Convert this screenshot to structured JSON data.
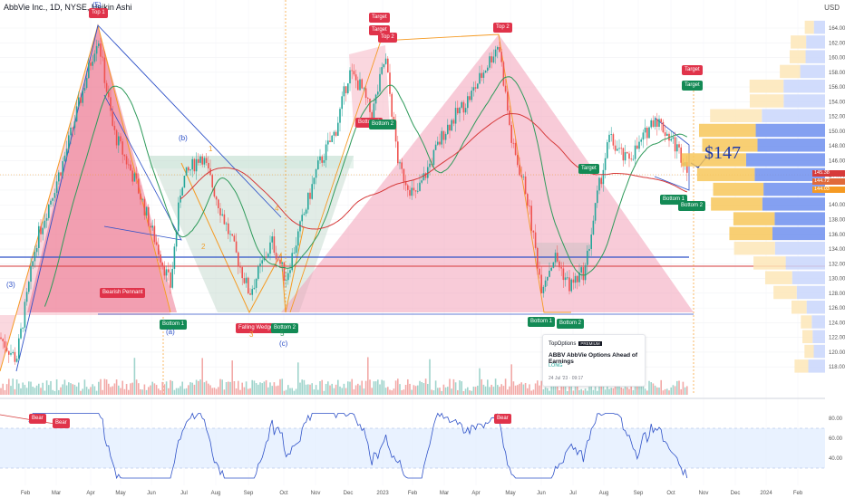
{
  "header": {
    "title": "AbbVie Inc., 1D, NYSE, Heikin Ashi",
    "currency": "USD"
  },
  "colors": {
    "bull": "#26a69a",
    "bear": "#ef5350",
    "pattern": "#f08a8a",
    "line_blue": "#2f52c8",
    "orange": "#f59a23",
    "ma_green": "#2e9a5a",
    "ma_red": "#d63a3a",
    "rsi": "#2f52c8"
  },
  "price_labels": {
    "current": "145.38",
    "p2": "144.72",
    "p3": "144.03"
  },
  "price_axis": [
    164,
    162,
    160,
    158,
    156,
    154,
    152,
    150,
    148,
    146,
    144,
    142,
    140,
    138,
    136,
    134,
    132,
    130,
    128,
    126,
    124,
    122,
    120,
    118
  ],
  "rsi_axis": [
    80,
    60,
    40
  ],
  "time_axis": [
    "Feb",
    "Mar",
    "Apr",
    "May",
    "Jun",
    "Jul",
    "Aug",
    "Sep",
    "Oct",
    "Nov",
    "Dec",
    "2023",
    "Feb",
    "Mar",
    "Apr",
    "May",
    "Jun",
    "Jul",
    "Aug",
    "Sep",
    "Oct",
    "Nov",
    "Dec",
    "2024",
    "Feb"
  ],
  "tags": {
    "top1": "Top 1",
    "top2": "Top 2",
    "target1": "Target",
    "target2": "Target",
    "target3": "Target",
    "target4": "Target",
    "target5": "Target",
    "bottom_a": "Bottom 1",
    "bottom_b": "Bottom 2",
    "bottom_c": "Bottom 1",
    "bottom_d": "Bottom 2",
    "bottom_e": "Bottom 1",
    "bottom_f": "Bottom 2",
    "bottom_g": "Bottom 1",
    "bottom_h": "Bottom 2",
    "top2b": "Top 2",
    "bearish": "Bearish Pennant",
    "wedge": "Falling Wedge",
    "bear1": "Bear",
    "bear2": "Bear",
    "bear3": "Bear"
  },
  "wave_labels": {
    "w5": "(5)",
    "w3": "(3)",
    "wb": "(b)",
    "wa": "(a)",
    "wc": "(c)",
    "o1": "1",
    "o2": "2",
    "o3": "3",
    "o4": "4",
    "o5": "5"
  },
  "target_price": "$147",
  "idea_card": {
    "brand": "TopOptions",
    "badge": "PREMIUM",
    "title": "ABBV AbbVie Options Ahead of Earnings",
    "direction": "LONG",
    "date": "24 Jul '23 · 09:17"
  },
  "chart_data": {
    "type": "candlestick",
    "title": "AbbVie Inc., 1D, NYSE, Heikin Ashi",
    "series": [
      {
        "name": "AbbVie Inc.",
        "x": [
          "Jan 2022",
          "Apr 2022",
          "Jun 2022",
          "Aug 2022",
          "Sep 2022",
          "Dec 2022",
          "Feb 2023",
          "Apr 2023",
          "Jun 2023",
          "Jul 2023",
          "Sep 2023",
          "Oct 2023"
        ],
        "values": [
          121,
          163,
          129,
          147,
          128,
          160,
          141,
          162,
          129,
          130,
          152,
          145
        ]
      }
    ],
    "ylim": [
      117,
      165
    ],
    "rsi": {
      "ylim": [
        20,
        90
      ],
      "band": [
        30,
        70
      ]
    }
  }
}
